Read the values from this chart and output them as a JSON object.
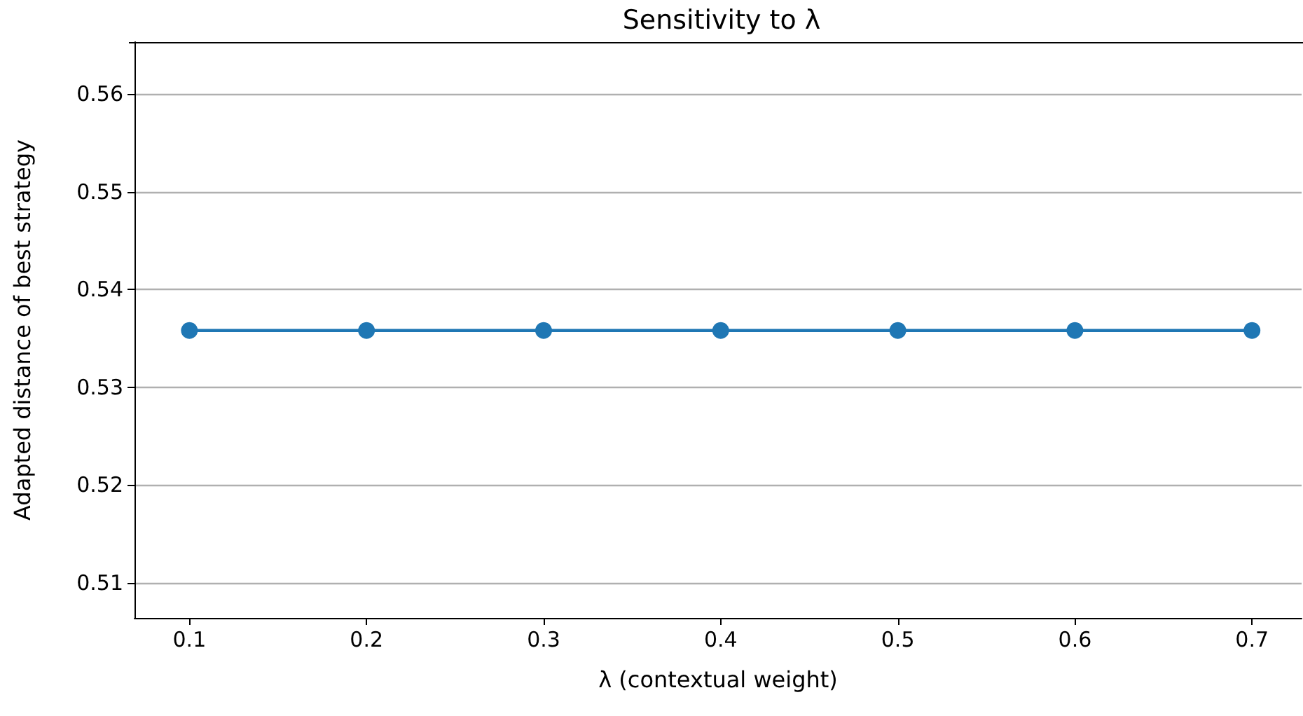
{
  "chart_data": {
    "type": "line",
    "title": "Sensitivity to λ",
    "xlabel": "λ (contextual weight)",
    "ylabel": "Adapted distance of best strategy",
    "x": [
      0.1,
      0.2,
      0.3,
      0.4,
      0.5,
      0.6,
      0.7
    ],
    "series": [
      {
        "color": "#1f77b4",
        "values": [
          0.5358,
          0.5358,
          0.5358,
          0.5358,
          0.5358,
          0.5358,
          0.5358
        ]
      }
    ],
    "xlim": [
      0.069,
      0.728
    ],
    "xticks": [
      0.1,
      0.2,
      0.3,
      0.4,
      0.5,
      0.6,
      0.7
    ],
    "ylim": [
      0.5064,
      0.5653
    ],
    "yticks": [
      0.51,
      0.52,
      0.53,
      0.54,
      0.55,
      0.56
    ],
    "grid": "y",
    "marker": "circle",
    "line_style": "solid"
  }
}
